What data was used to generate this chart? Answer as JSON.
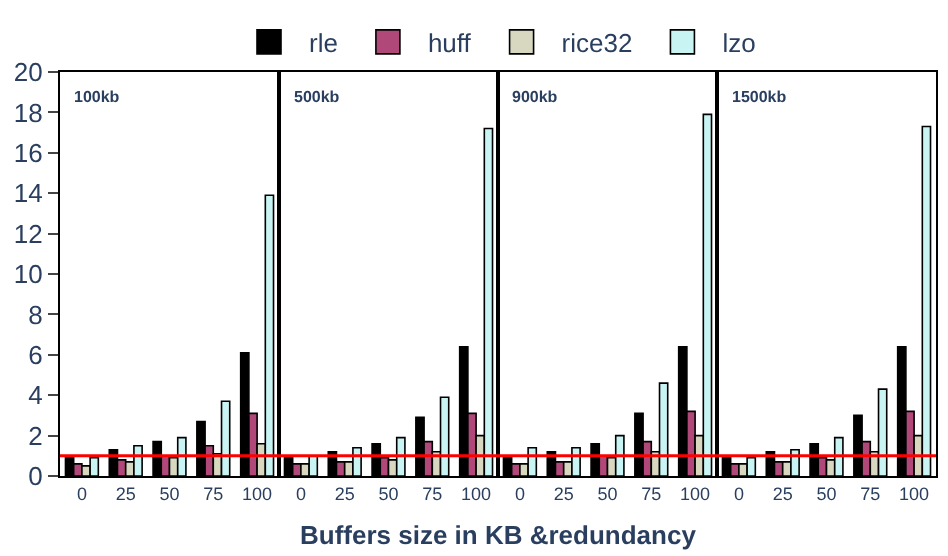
{
  "chart_data": [
    {
      "type": "bar",
      "annotations": [
        "100kb"
      ],
      "xlabel": "Buffers size in KB &redundancy",
      "categories": [
        "0",
        "25",
        "50",
        "75",
        "100"
      ],
      "ylim": [
        0,
        20
      ],
      "yticks": [
        0,
        2,
        4,
        6,
        8,
        10,
        12,
        14,
        16,
        18,
        20
      ],
      "legend": "top",
      "ref_lines": [
        {
          "axis": "y",
          "value": 1,
          "color": "#ff0000"
        }
      ],
      "series": [
        {
          "name": "rle",
          "color": "#000000",
          "values": [
            0.9,
            1.3,
            1.7,
            2.7,
            6.1
          ]
        },
        {
          "name": "huff",
          "color": "#b0487a",
          "values": [
            0.6,
            0.8,
            1.0,
            1.5,
            3.1
          ]
        },
        {
          "name": "rice32",
          "color": "#d8d8c0",
          "values": [
            0.5,
            0.7,
            0.9,
            1.1,
            1.6
          ]
        },
        {
          "name": "lzo",
          "color": "#c8f4f4",
          "values": [
            0.9,
            1.5,
            1.9,
            3.7,
            13.9
          ]
        }
      ]
    },
    {
      "type": "bar",
      "annotations": [
        "500kb"
      ],
      "categories": [
        "0",
        "25",
        "50",
        "75",
        "100"
      ],
      "ylim": [
        0,
        20
      ],
      "tick_labels": "x",
      "ref_lines": [
        {
          "axis": "y",
          "value": 1,
          "color": "#ff0000"
        }
      ],
      "series": [
        {
          "color": "#000000",
          "values": [
            0.9,
            1.2,
            1.6,
            2.9,
            6.4
          ]
        },
        {
          "color": "#b0487a",
          "values": [
            0.6,
            0.7,
            0.9,
            1.7,
            3.1
          ]
        },
        {
          "color": "#d8d8c0",
          "values": [
            0.6,
            0.7,
            0.8,
            1.2,
            2.0
          ]
        },
        {
          "color": "#c8f4f4",
          "values": [
            1.0,
            1.4,
            1.9,
            3.9,
            17.2
          ]
        }
      ]
    },
    {
      "type": "bar",
      "annotations": [
        "900kb"
      ],
      "categories": [
        "0",
        "25",
        "50",
        "75",
        "100"
      ],
      "ylim": [
        0,
        20
      ],
      "tick_labels": "x",
      "ref_lines": [
        {
          "axis": "y",
          "value": 1,
          "color": "#ff0000"
        }
      ],
      "series": [
        {
          "color": "#000000",
          "values": [
            0.9,
            1.2,
            1.6,
            3.1,
            6.4
          ]
        },
        {
          "color": "#b0487a",
          "values": [
            0.6,
            0.7,
            1.0,
            1.7,
            3.2
          ]
        },
        {
          "color": "#d8d8c0",
          "values": [
            0.6,
            0.7,
            0.9,
            1.2,
            2.0
          ]
        },
        {
          "color": "#c8f4f4",
          "values": [
            1.4,
            1.4,
            2.0,
            4.6,
            17.9
          ]
        }
      ]
    },
    {
      "type": "bar",
      "annotations": [
        "1500kb"
      ],
      "categories": [
        "0",
        "25",
        "50",
        "75",
        "100"
      ],
      "ylim": [
        0,
        20
      ],
      "tick_labels": "x",
      "ref_lines": [
        {
          "axis": "y",
          "value": 1,
          "color": "#ff0000"
        }
      ],
      "series": [
        {
          "color": "#000000",
          "values": [
            0.9,
            1.2,
            1.6,
            3.0,
            6.4
          ]
        },
        {
          "color": "#b0487a",
          "values": [
            0.6,
            0.7,
            0.9,
            1.7,
            3.2
          ]
        },
        {
          "color": "#d8d8c0",
          "values": [
            0.6,
            0.7,
            0.8,
            1.2,
            2.0
          ]
        },
        {
          "color": "#c8f4f4",
          "values": [
            0.9,
            1.3,
            1.9,
            4.3,
            17.3
          ]
        }
      ]
    }
  ]
}
